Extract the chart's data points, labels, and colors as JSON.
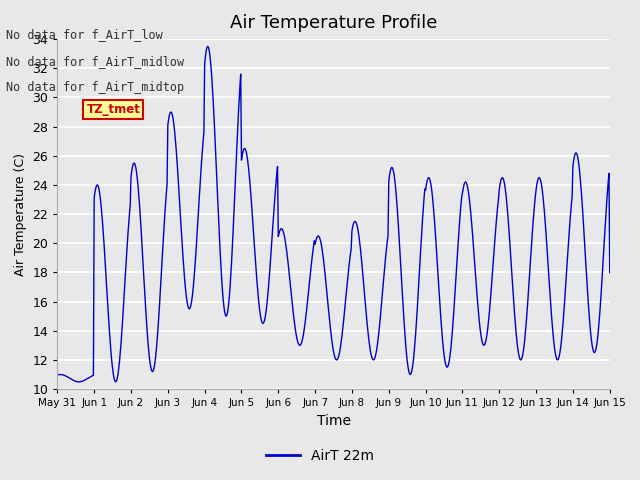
{
  "title": "Air Temperature Profile",
  "xlabel": "Time",
  "ylabel": "Air Temperature (C)",
  "legend_label": "AirT 22m",
  "line_color": "#0000cc",
  "bg_color": "#e8e8e8",
  "ylim": [
    10,
    34
  ],
  "yticks": [
    10,
    12,
    14,
    16,
    18,
    20,
    22,
    24,
    26,
    28,
    30,
    32,
    34
  ],
  "xtick_labels": [
    "May 31",
    "Jun 1",
    "Jun 2",
    "Jun 3",
    "Jun 4",
    "Jun 5",
    "Jun 6",
    "Jun 7",
    "Jun 8",
    "Jun 9",
    "Jun 10",
    "Jun 11",
    "Jun 12",
    "Jun 13",
    "Jun 14",
    "Jun 15"
  ],
  "annotations": [
    "No data for f_AirT_low",
    "No data for f_AirT_midlow",
    "No data for f_AirT_midtop"
  ],
  "annotation_color": "#333333",
  "tz_label": "TZ_tmet",
  "tz_bg": "#ffff99",
  "tz_border": "#cc0000",
  "day_maxes": [
    11.0,
    24.0,
    25.5,
    29.0,
    33.5,
    26.5,
    21.0,
    20.5,
    21.5,
    25.2,
    24.5,
    24.2,
    24.5,
    24.5,
    26.2,
    18.0
  ],
  "day_mins": [
    10.5,
    10.5,
    11.2,
    15.5,
    15.0,
    14.5,
    13.0,
    12.0,
    12.0,
    11.0,
    11.5,
    13.0,
    12.0,
    12.0,
    12.5,
    17.5
  ]
}
